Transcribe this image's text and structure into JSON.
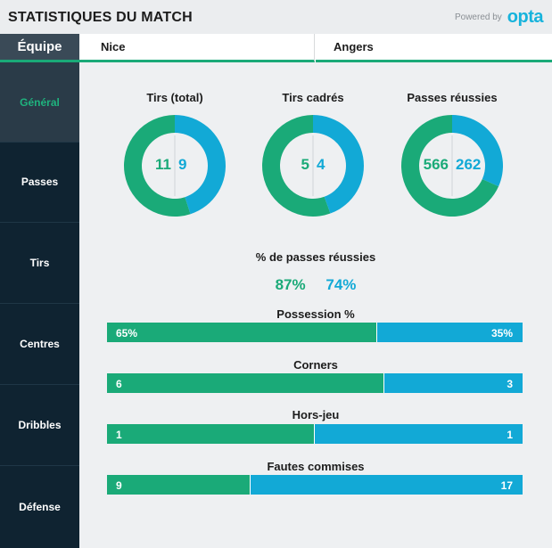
{
  "header": {
    "title": "STATISTIQUES DU MATCH",
    "powered_by": "Powered by",
    "logo": "opta"
  },
  "teams": {
    "label": "Équipe",
    "home": "Nice",
    "away": "Angers"
  },
  "nav": [
    {
      "label": "Général",
      "active": true
    },
    {
      "label": "Passes",
      "active": false
    },
    {
      "label": "Tirs",
      "active": false
    },
    {
      "label": "Centres",
      "active": false
    },
    {
      "label": "Dribbles",
      "active": false
    },
    {
      "label": "Défense",
      "active": false
    }
  ],
  "colors": {
    "home": "#1aaa78",
    "away": "#12a9d6"
  },
  "donuts": [
    {
      "title": "Tirs (total)",
      "home": 11,
      "away": 9
    },
    {
      "title": "Tirs cadrés",
      "home": 5,
      "away": 4
    },
    {
      "title": "Passes réussies",
      "home": 566,
      "away": 262
    }
  ],
  "pass_pct": {
    "title": "% de passes réussies",
    "home": "87%",
    "away": "74%"
  },
  "bars": [
    {
      "title": "Possession %",
      "home": 65,
      "away": 35,
      "home_label": "65%",
      "away_label": "35%"
    },
    {
      "title": "Corners",
      "home": 6,
      "away": 3,
      "home_label": "6",
      "away_label": "3"
    },
    {
      "title": "Hors-jeu",
      "home": 1,
      "away": 1,
      "home_label": "1",
      "away_label": "1"
    },
    {
      "title": "Fautes commises",
      "home": 9,
      "away": 17,
      "home_label": "9",
      "away_label": "17"
    }
  ]
}
